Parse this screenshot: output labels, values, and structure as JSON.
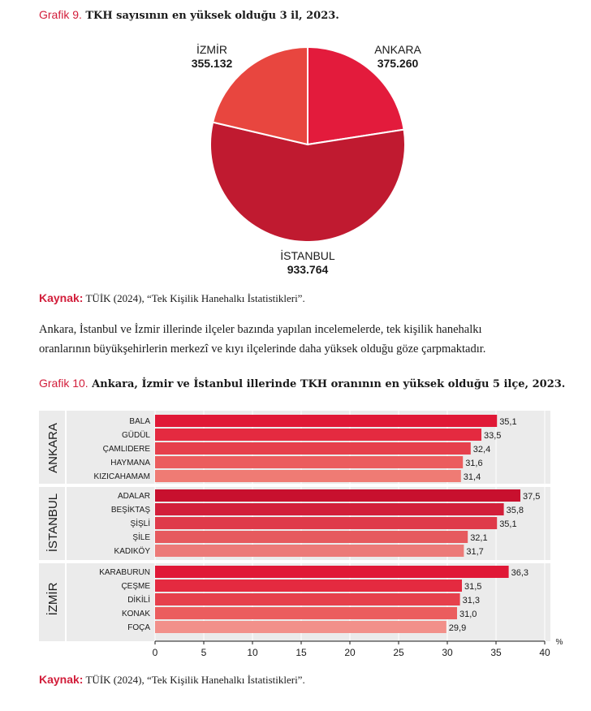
{
  "chart1": {
    "caption_lead": "Grafik 9.",
    "caption_text": "TKH sayısının en yüksek olduğu 3 il, 2023.",
    "source_label": "Kaynak:",
    "source_text": "TÜİK (2024), “Tek Kişilik Hanehalkı İstatistikleri”."
  },
  "paragraph": {
    "line1": "Ankara, İstanbul ve İzmir illerinde ilçeler bazında yapılan incelemelerde, tek kişilik hanehalkı",
    "line2": "oranlarının büyükşehirlerin merkezî ve kıyı ilçelerinde daha yüksek olduğu göze çarpmaktadır."
  },
  "chart2": {
    "caption_lead": "Grafik 10.",
    "caption_text": "Ankara, İzmir ve İstanbul illerinde TKH oranının en yüksek olduğu 5 ilçe, 2023.",
    "source_label": "Kaynak:",
    "source_text": "TÜİK (2024), “Tek Kişilik Hanehalkı İstatistikleri”."
  },
  "chart_data": [
    {
      "type": "pie",
      "slices": [
        {
          "label": "ANKARA",
          "value_label": "375.260",
          "value": 375260,
          "color": "#e31b3c"
        },
        {
          "label": "İSTANBUL",
          "value_label": "933.764",
          "value": 933764,
          "color": "#c01a30"
        },
        {
          "label": "İZMİR",
          "value_label": "355.132",
          "value": 355132,
          "color": "#e8463f"
        }
      ]
    },
    {
      "type": "bar",
      "orientation": "horizontal",
      "unit": "%",
      "xlim": [
        0,
        40
      ],
      "xticks": [
        "0",
        "5",
        "10",
        "15",
        "20",
        "25",
        "30",
        "35",
        "40"
      ],
      "groups": [
        {
          "name": "ANKARA",
          "bars": [
            {
              "label": "BALA",
              "value": 35.1,
              "value_label": "35,1",
              "color": "#e01836"
            },
            {
              "label": "GÜDÜL",
              "value": 33.5,
              "value_label": "33,5",
              "color": "#e42a40"
            },
            {
              "label": "ÇAMLIDERE",
              "value": 32.4,
              "value_label": "32,4",
              "color": "#e6404c"
            },
            {
              "label": "HAYMANA",
              "value": 31.6,
              "value_label": "31,6",
              "color": "#eb5d5e"
            },
            {
              "label": "KIZICAHAMAM",
              "value": 31.4,
              "value_label": "31,4",
              "color": "#ef7b74"
            }
          ]
        },
        {
          "name": "İSTANBUL",
          "bars": [
            {
              "label": "ADALAR",
              "value": 37.5,
              "value_label": "37,5",
              "color": "#c8102e"
            },
            {
              "label": "BEŞİKTAŞ",
              "value": 35.8,
              "value_label": "35,8",
              "color": "#d21f3a"
            },
            {
              "label": "ŞİŞLİ",
              "value": 35.1,
              "value_label": "35,1",
              "color": "#df3a4a"
            },
            {
              "label": "ŞİLE",
              "value": 32.1,
              "value_label": "32,1",
              "color": "#e65a5e"
            },
            {
              "label": "KADIKÖY",
              "value": 31.7,
              "value_label": "31,7",
              "color": "#ec7a78"
            }
          ]
        },
        {
          "name": "İZMİR",
          "bars": [
            {
              "label": "KARABURUN",
              "value": 36.3,
              "value_label": "36,3",
              "color": "#e01836"
            },
            {
              "label": "ÇEŞME",
              "value": 31.5,
              "value_label": "31,5",
              "color": "#e42a40"
            },
            {
              "label": "DİKİLİ",
              "value": 31.3,
              "value_label": "31,3",
              "color": "#e6404c"
            },
            {
              "label": "KONAK",
              "value": 31.0,
              "value_label": "31,0",
              "color": "#eb5d5e"
            },
            {
              "label": "FOÇA",
              "value": 29.9,
              "value_label": "29,9",
              "color": "#f2908a"
            }
          ]
        }
      ]
    }
  ]
}
